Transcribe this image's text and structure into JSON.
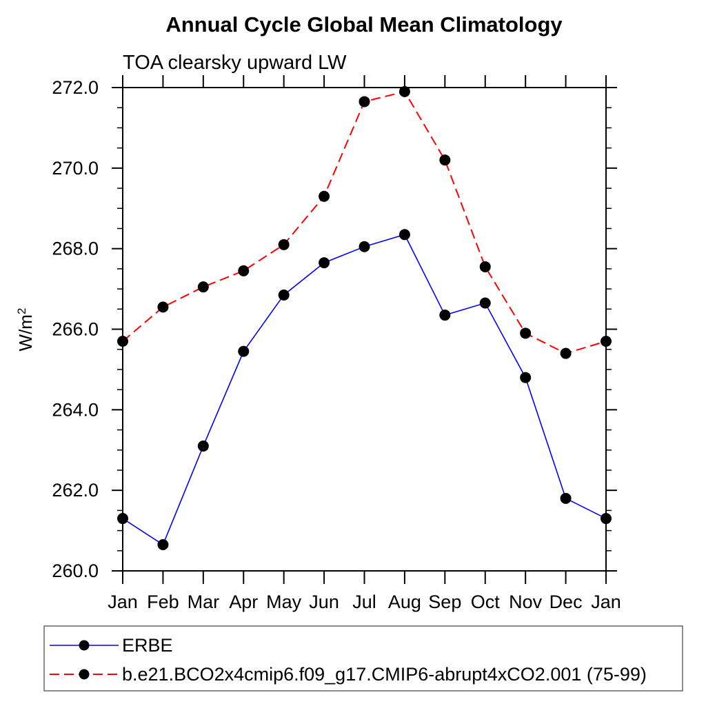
{
  "header": {
    "title": "Annual Cycle Global Mean Climatology",
    "subtitle": "TOA clearsky upward LW"
  },
  "chart_data": {
    "type": "line",
    "title": "Annual Cycle Global Mean Climatology",
    "subtitle": "TOA clearsky upward LW",
    "xlabel": "",
    "ylabel": "W/m²",
    "ylabel_base": "W/m",
    "ylabel_exp": "2",
    "categories": [
      "Jan",
      "Feb",
      "Mar",
      "Apr",
      "May",
      "Jun",
      "Jul",
      "Aug",
      "Sep",
      "Oct",
      "Nov",
      "Dec",
      "Jan"
    ],
    "ylim": [
      260.0,
      272.0
    ],
    "ytick_major_step": 2.0,
    "ytick_minor_step": 0.5,
    "ytick_labels": [
      "260.0",
      "262.0",
      "264.0",
      "266.0",
      "268.0",
      "270.0",
      "272.0"
    ],
    "grid": false,
    "legend_position": "bottom-left-box",
    "frame_color": "#000000",
    "marker_color": "#000000",
    "series": [
      {
        "name": "ERBE",
        "color": "#0000ff",
        "line_style": "solid",
        "marker": "filled-circle",
        "values": [
          261.3,
          260.65,
          263.1,
          265.45,
          266.85,
          267.65,
          268.05,
          268.35,
          266.35,
          266.65,
          264.8,
          261.8,
          261.3
        ]
      },
      {
        "name": "b.e21.BCO2x4cmip6.f09_g17.CMIP6-abrupt4xCO2.001 (75-99)",
        "color": "#ff0000",
        "line_style": "dashed",
        "marker": "filled-circle",
        "values": [
          265.7,
          266.55,
          267.05,
          267.45,
          268.1,
          269.3,
          271.65,
          271.9,
          270.2,
          267.55,
          265.9,
          265.4,
          265.7
        ]
      }
    ]
  }
}
